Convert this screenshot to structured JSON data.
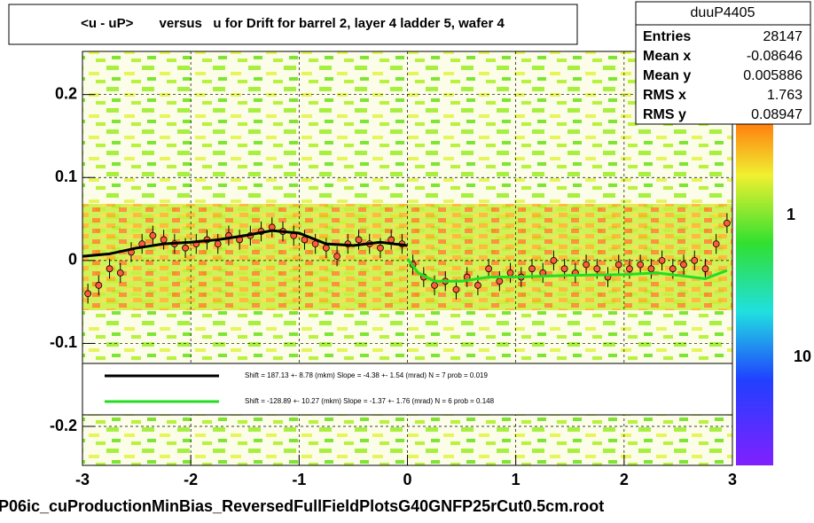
{
  "chart_data": {
    "type": "scatter",
    "title": "<u - uP>       versus   u for Drift for barrel 2, layer 4 ladder 5, wafer 4",
    "footer": "P06ic_cuProductionMinBias_ReversedFullFieldPlotsG40GNFP25rCut0.5cm.root",
    "xlim": [
      -3,
      3
    ],
    "ylim": [
      -0.247,
      0.252
    ],
    "xticks": [
      -3,
      -2,
      -1,
      0,
      1,
      2,
      3
    ],
    "yticks": [
      0.2,
      0.1,
      0,
      -0.1,
      -0.2
    ],
    "grid": true,
    "x": [
      -2.95,
      -2.85,
      -2.75,
      -2.65,
      -2.55,
      -2.45,
      -2.35,
      -2.25,
      -2.15,
      -2.05,
      -1.95,
      -1.85,
      -1.75,
      -1.65,
      -1.55,
      -1.45,
      -1.35,
      -1.25,
      -1.15,
      -1.05,
      -0.95,
      -0.85,
      -0.75,
      -0.65,
      -0.55,
      -0.45,
      -0.35,
      -0.25,
      -0.15,
      -0.05,
      0.05,
      0.15,
      0.25,
      0.35,
      0.45,
      0.55,
      0.65,
      0.75,
      0.85,
      0.95,
      1.05,
      1.15,
      1.25,
      1.35,
      1.45,
      1.55,
      1.65,
      1.75,
      1.85,
      1.95,
      2.05,
      2.15,
      2.25,
      2.35,
      2.45,
      2.55,
      2.65,
      2.75,
      2.85,
      2.95
    ],
    "series": [
      {
        "color": "#ff5a3c",
        "values": [
          -0.04,
          -0.03,
          -0.01,
          -0.015,
          0.01,
          0.02,
          0.03,
          0.025,
          0.02,
          0.015,
          0.02,
          0.025,
          0.02,
          0.03,
          0.025,
          0.03,
          0.035,
          0.04,
          0.035,
          0.03,
          0.025,
          0.02,
          0.015,
          0.005,
          0.02,
          0.025,
          0.02,
          0.015,
          0.025,
          0.02,
          -0.005,
          -0.02,
          -0.03,
          -0.025,
          -0.035,
          -0.02,
          -0.03,
          -0.01,
          -0.025,
          -0.015,
          -0.02,
          -0.01,
          -0.015,
          0.0,
          -0.01,
          -0.015,
          -0.005,
          -0.01,
          -0.02,
          -0.005,
          -0.01,
          -0.005,
          -0.01,
          0.0,
          -0.01,
          -0.005,
          0.0,
          -0.01,
          0.02,
          0.045
        ],
        "errors": [
          0.012,
          0.012,
          0.012,
          0.012,
          0.012,
          0.012,
          0.012,
          0.012,
          0.012,
          0.012,
          0.012,
          0.012,
          0.012,
          0.012,
          0.012,
          0.012,
          0.012,
          0.012,
          0.012,
          0.012,
          0.012,
          0.012,
          0.012,
          0.012,
          0.012,
          0.012,
          0.012,
          0.012,
          0.012,
          0.012,
          0.012,
          0.012,
          0.012,
          0.012,
          0.012,
          0.012,
          0.012,
          0.012,
          0.012,
          0.012,
          0.012,
          0.012,
          0.012,
          0.012,
          0.012,
          0.012,
          0.012,
          0.012,
          0.012,
          0.012,
          0.012,
          0.012,
          0.012,
          0.012,
          0.012,
          0.012,
          0.012,
          0.012,
          0.012,
          0.012
        ]
      }
    ],
    "fits": [
      {
        "name": "Shift =   187.13 +- 8.78 (mkm) Slope =    -4.38 +- 1.54 (mrad)  N = 7 prob = 0.019",
        "color": "#000000",
        "x": [
          -3,
          -2.75,
          -2.5,
          -2.25,
          -2,
          -1.75,
          -1.5,
          -1.25,
          -1,
          -0.75,
          -0.5,
          -0.25,
          0
        ],
        "values": [
          0.005,
          0.008,
          0.015,
          0.02,
          0.022,
          0.025,
          0.03,
          0.036,
          0.033,
          0.02,
          0.018,
          0.022,
          0.018
        ]
      },
      {
        "name": "Shift =   -128.89 +- 10.27 (mkm) Slope =    -1.37 +- 1.76 (mrad)  N = 6 prob = 0.148",
        "color": "#22dd22",
        "x": [
          0,
          0.1,
          0.25,
          0.5,
          0.75,
          1,
          1.5,
          2,
          2.3,
          2.5,
          2.75,
          2.95
        ],
        "values": [
          0.002,
          -0.015,
          -0.025,
          -0.025,
          -0.02,
          -0.02,
          -0.018,
          -0.017,
          -0.015,
          -0.018,
          -0.022,
          -0.012
        ]
      }
    ],
    "stats": {
      "title": "duuP4405",
      "rows": [
        [
          "Entries",
          "28147"
        ],
        [
          "Mean x",
          "-0.08646"
        ],
        [
          "Mean y",
          "0.005886"
        ],
        [
          "RMS x",
          "1.763"
        ],
        [
          "RMS y",
          "0.08947"
        ]
      ]
    },
    "colorbar_labels": [
      "1",
      "10"
    ]
  }
}
